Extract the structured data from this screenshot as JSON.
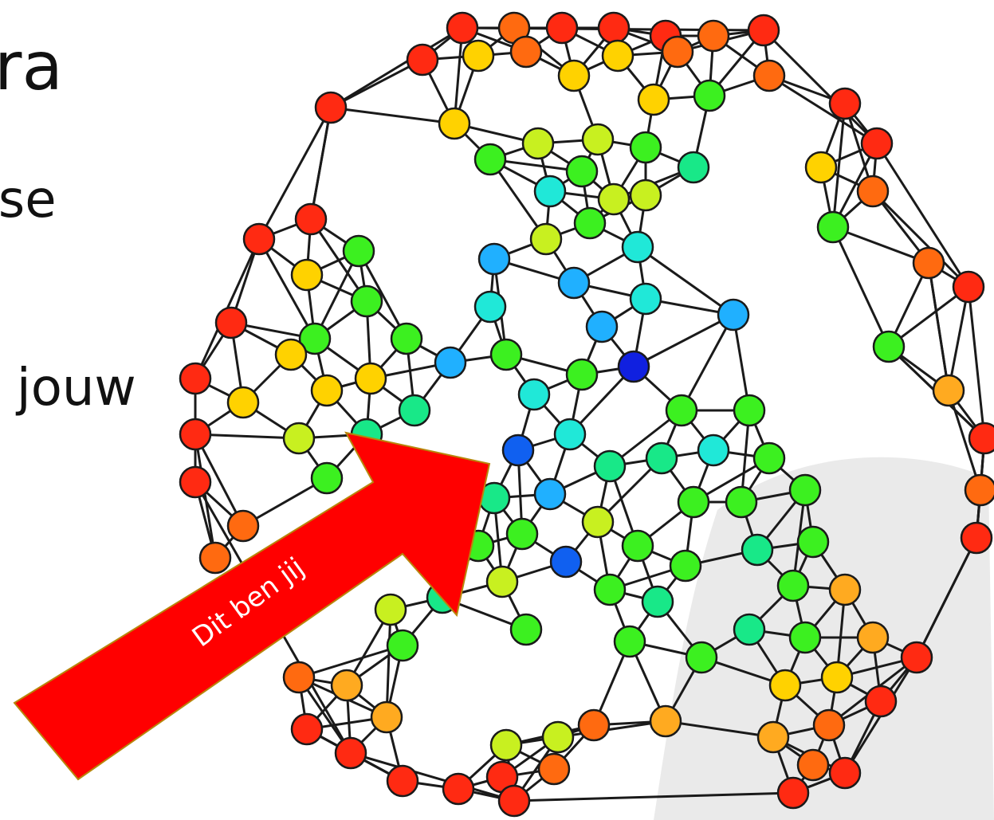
{
  "slide": {
    "line1": "tra",
    "line2": "yse",
    "line3": "n jouw"
  },
  "arrow": {
    "label": "Dit ben jij",
    "color": "#ff0000",
    "border": "#b8860b"
  },
  "palette": {
    "red": "#ff2a12",
    "orange": "#ff6a10",
    "amber": "#ffaa20",
    "yellow": "#ffd200",
    "lime": "#c8f020",
    "green": "#3cf020",
    "mint": "#18e888",
    "cyan": "#20e8d8",
    "sky": "#20b0ff",
    "blue": "#1060f0",
    "navy": "#1020e0"
  }
}
